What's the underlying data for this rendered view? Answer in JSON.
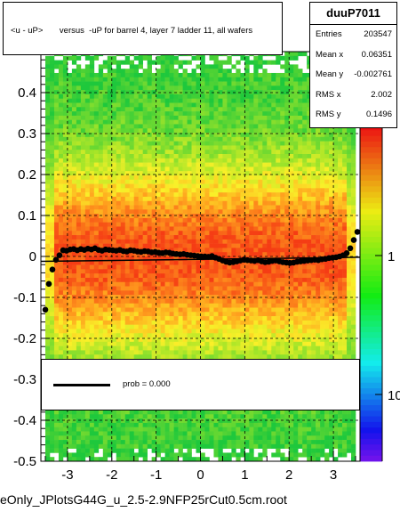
{
  "chart_data": {
    "type": "heatmap",
    "title": "<u - uP>       versus  -uP for barrel 4, layer 7 ladder 11, all wafers",
    "xlim": [
      -3.6,
      3.6
    ],
    "ylim": [
      -0.5,
      0.5
    ],
    "x_ticks": [
      "-3",
      "-2",
      "-1",
      "0",
      "1",
      "2",
      "3"
    ],
    "y_ticks": [
      "-0.5",
      "-0.4",
      "-0.3",
      "-0.2",
      "-0.1",
      "0",
      "0.1",
      "0.2",
      "0.3",
      "0.4"
    ],
    "colorbar_ticks": [
      "1",
      "10"
    ],
    "grid": true,
    "profile_points": {
      "x": [
        -3.5,
        -3.42,
        -3.34,
        -3.26,
        -3.18,
        -3.1,
        -3.02,
        -2.94,
        -2.86,
        -2.78,
        -2.7,
        -2.62,
        -2.54,
        -2.46,
        -2.38,
        -2.3,
        -2.22,
        -2.14,
        -2.06,
        -1.98,
        -1.9,
        -1.82,
        -1.74,
        -1.66,
        -1.58,
        -1.5,
        -1.42,
        -1.34,
        -1.26,
        -1.18,
        -1.1,
        -1.02,
        -0.94,
        -0.86,
        -0.78,
        -0.7,
        -0.62,
        -0.54,
        -0.46,
        -0.38,
        -0.3,
        -0.22,
        -0.14,
        -0.06,
        0.02,
        0.1,
        0.18,
        0.26,
        0.34,
        0.42,
        0.5,
        0.58,
        0.66,
        0.74,
        0.82,
        0.9,
        0.98,
        1.06,
        1.14,
        1.22,
        1.3,
        1.38,
        1.46,
        1.54,
        1.62,
        1.7,
        1.78,
        1.86,
        1.94,
        2.02,
        2.1,
        2.18,
        2.26,
        2.34,
        2.42,
        2.5,
        2.58,
        2.66,
        2.74,
        2.82,
        2.9,
        2.98,
        3.06,
        3.14,
        3.22,
        3.3,
        3.38,
        3.46,
        3.54
      ],
      "y": [
        -0.13,
        -0.067,
        -0.032,
        -0.008,
        0.003,
        0.015,
        0.014,
        0.017,
        0.018,
        0.015,
        0.018,
        0.016,
        0.019,
        0.017,
        0.02,
        0.016,
        0.014,
        0.017,
        0.016,
        0.015,
        0.014,
        0.016,
        0.013,
        0.012,
        0.015,
        0.014,
        0.012,
        0.011,
        0.013,
        0.012,
        0.01,
        0.011,
        0.009,
        0.008,
        0.01,
        0.009,
        0.007,
        0.006,
        0.005,
        0.006,
        0.004,
        0.003,
        0.002,
        0.001,
        0.0,
        0.0,
        -0.001,
        0.001,
        -0.003,
        -0.006,
        -0.01,
        -0.013,
        -0.015,
        -0.014,
        -0.012,
        -0.01,
        -0.008,
        -0.009,
        -0.01,
        -0.011,
        -0.009,
        -0.012,
        -0.014,
        -0.013,
        -0.011,
        -0.01,
        -0.012,
        -0.014,
        -0.015,
        -0.016,
        -0.015,
        -0.013,
        -0.012,
        -0.011,
        -0.01,
        -0.009,
        -0.008,
        -0.009,
        -0.007,
        -0.006,
        -0.004,
        -0.003,
        -0.002,
        0.0,
        0.003,
        0.008,
        0.02,
        0.04,
        0.06
      ]
    },
    "fit_line": {
      "x": [
        -3.6,
        3.6
      ],
      "y": [
        -0.012,
        -0.002
      ]
    }
  },
  "stats": {
    "name": "duuP7011",
    "rows": [
      {
        "label": "Entries",
        "value": "203547"
      },
      {
        "label": "Mean x",
        "value": "0.06351"
      },
      {
        "label": "Mean y",
        "value": "-0.002761"
      },
      {
        "label": "RMS x",
        "value": "2.002"
      },
      {
        "label": "RMS y",
        "value": "0.1496"
      }
    ]
  },
  "legend": {
    "text": "prob = 0.000"
  },
  "footer": "eOnly_JPlotsG44G_u_2.5-2.9NFP25rCut0.5cm.root",
  "colors": {
    "frame": "#000000",
    "profile": "#000000",
    "grid": "#000000"
  }
}
